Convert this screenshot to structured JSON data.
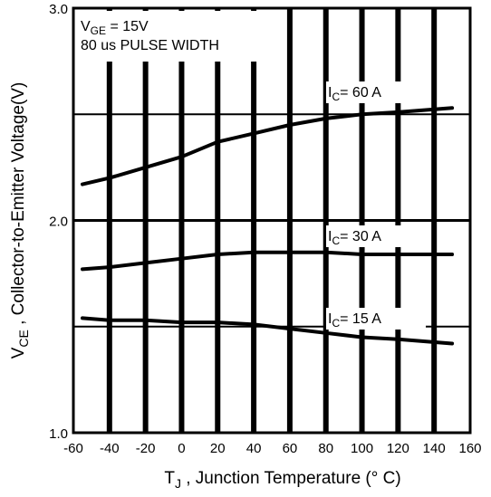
{
  "chart_data": {
    "type": "line",
    "xlabel": {
      "main": "T",
      "sub": "J",
      "rest": " , Junction Temperature (° C)"
    },
    "ylabel": {
      "main": "V",
      "sub": "CE",
      "rest": " , Collector-to-Emitter Voltage(V)"
    },
    "xlim": [
      -60,
      160
    ],
    "ylim": [
      1.0,
      3.0
    ],
    "x_ticks": [
      -60,
      -40,
      -20,
      0,
      20,
      40,
      60,
      80,
      100,
      120,
      140,
      160
    ],
    "y_ticks": [
      {
        "value": 1.0,
        "label": "1.0"
      },
      {
        "value": 2.0,
        "label": "2.0"
      },
      {
        "value": 3.0,
        "label": "3.0"
      }
    ],
    "y_minor_gridlines": [
      1.5,
      2.5
    ],
    "grid": true,
    "annotation": {
      "line1": {
        "main": "V",
        "sub": "GE",
        "rest": " = 15V"
      },
      "line2": "80 us PULSE WIDTH"
    },
    "series": [
      {
        "name": {
          "main": "I",
          "sub": "C",
          "rest": "= 60 A"
        },
        "x": [
          -55,
          -40,
          -20,
          0,
          20,
          40,
          60,
          80,
          100,
          120,
          150
        ],
        "y": [
          2.17,
          2.2,
          2.25,
          2.3,
          2.37,
          2.41,
          2.45,
          2.48,
          2.5,
          2.51,
          2.53
        ]
      },
      {
        "name": {
          "main": "I",
          "sub": "C",
          "rest": "= 30 A"
        },
        "x": [
          -55,
          -40,
          -20,
          0,
          20,
          40,
          60,
          80,
          100,
          120,
          150
        ],
        "y": [
          1.77,
          1.78,
          1.8,
          1.82,
          1.84,
          1.85,
          1.85,
          1.85,
          1.84,
          1.84,
          1.84
        ]
      },
      {
        "name": {
          "main": "I",
          "sub": "C",
          "rest": "= 15 A"
        },
        "x": [
          -55,
          -40,
          -20,
          0,
          20,
          40,
          60,
          80,
          100,
          120,
          150
        ],
        "y": [
          1.54,
          1.53,
          1.53,
          1.52,
          1.52,
          1.51,
          1.49,
          1.47,
          1.45,
          1.44,
          1.42
        ]
      }
    ]
  }
}
